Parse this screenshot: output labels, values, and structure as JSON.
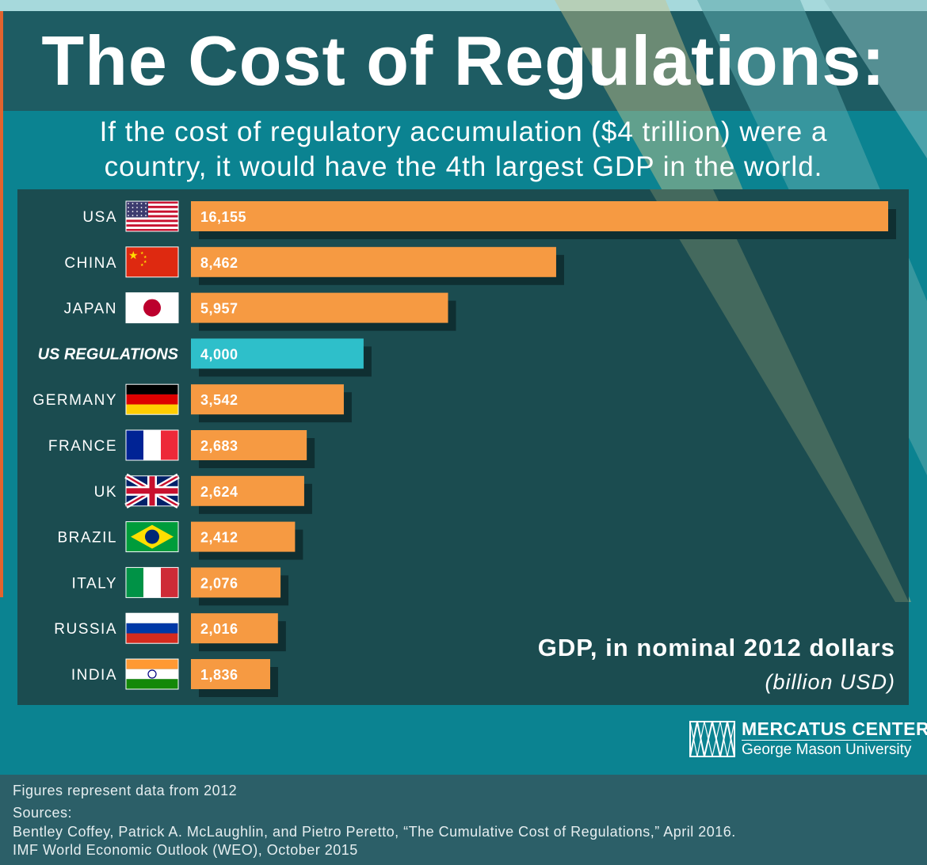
{
  "title": "The Cost of Regulations:",
  "subtitle_line1": "If the cost of regulatory accumulation ($4 trillion) were a",
  "subtitle_line2": "country, it would have the 4th largest GDP in the world.",
  "colors": {
    "country_bar": "#f69a42",
    "highlight_bar": "#2ebfca",
    "panel": "#1b4c50",
    "background": "#0b8391"
  },
  "chart_data": {
    "type": "bar",
    "orientation": "horizontal",
    "title": "GDP, in nominal 2012 dollars",
    "unit_label": "(billion USD)",
    "categories": [
      "USA",
      "CHINA",
      "JAPAN",
      "US REGULATIONS",
      "GERMANY",
      "FRANCE",
      "UK",
      "BRAZIL",
      "ITALY",
      "RUSSIA",
      "INDIA"
    ],
    "values": [
      16155,
      8462,
      5957,
      4000,
      3542,
      2683,
      2624,
      2412,
      2076,
      2016,
      1836
    ],
    "value_labels": [
      "16,155",
      "8,462",
      "5,957",
      "4,000",
      "3,542",
      "2,683",
      "2,624",
      "2,412",
      "2,076",
      "2,016",
      "1,836"
    ],
    "flags": [
      "usa-flag-icon",
      "china-flag-icon",
      "japan-flag-icon",
      "",
      "germany-flag-icon",
      "france-flag-icon",
      "uk-flag-icon",
      "brazil-flag-icon",
      "italy-flag-icon",
      "russia-flag-icon",
      "india-flag-icon"
    ],
    "highlight": "US REGULATIONS",
    "xlim": [
      0,
      16200
    ],
    "grid": false
  },
  "logo": {
    "name": "MERCATUS CENTER",
    "sub": "George Mason University"
  },
  "footer": {
    "note": "Figures represent data from 2012",
    "sources_label": "Sources:",
    "source1": "Bentley Coffey, Patrick A. McLaughlin, and Pietro Peretto, “The Cumulative Cost of Regulations,” April 2016.",
    "source2": "IMF World Economic Outlook (WEO), October 2015"
  }
}
